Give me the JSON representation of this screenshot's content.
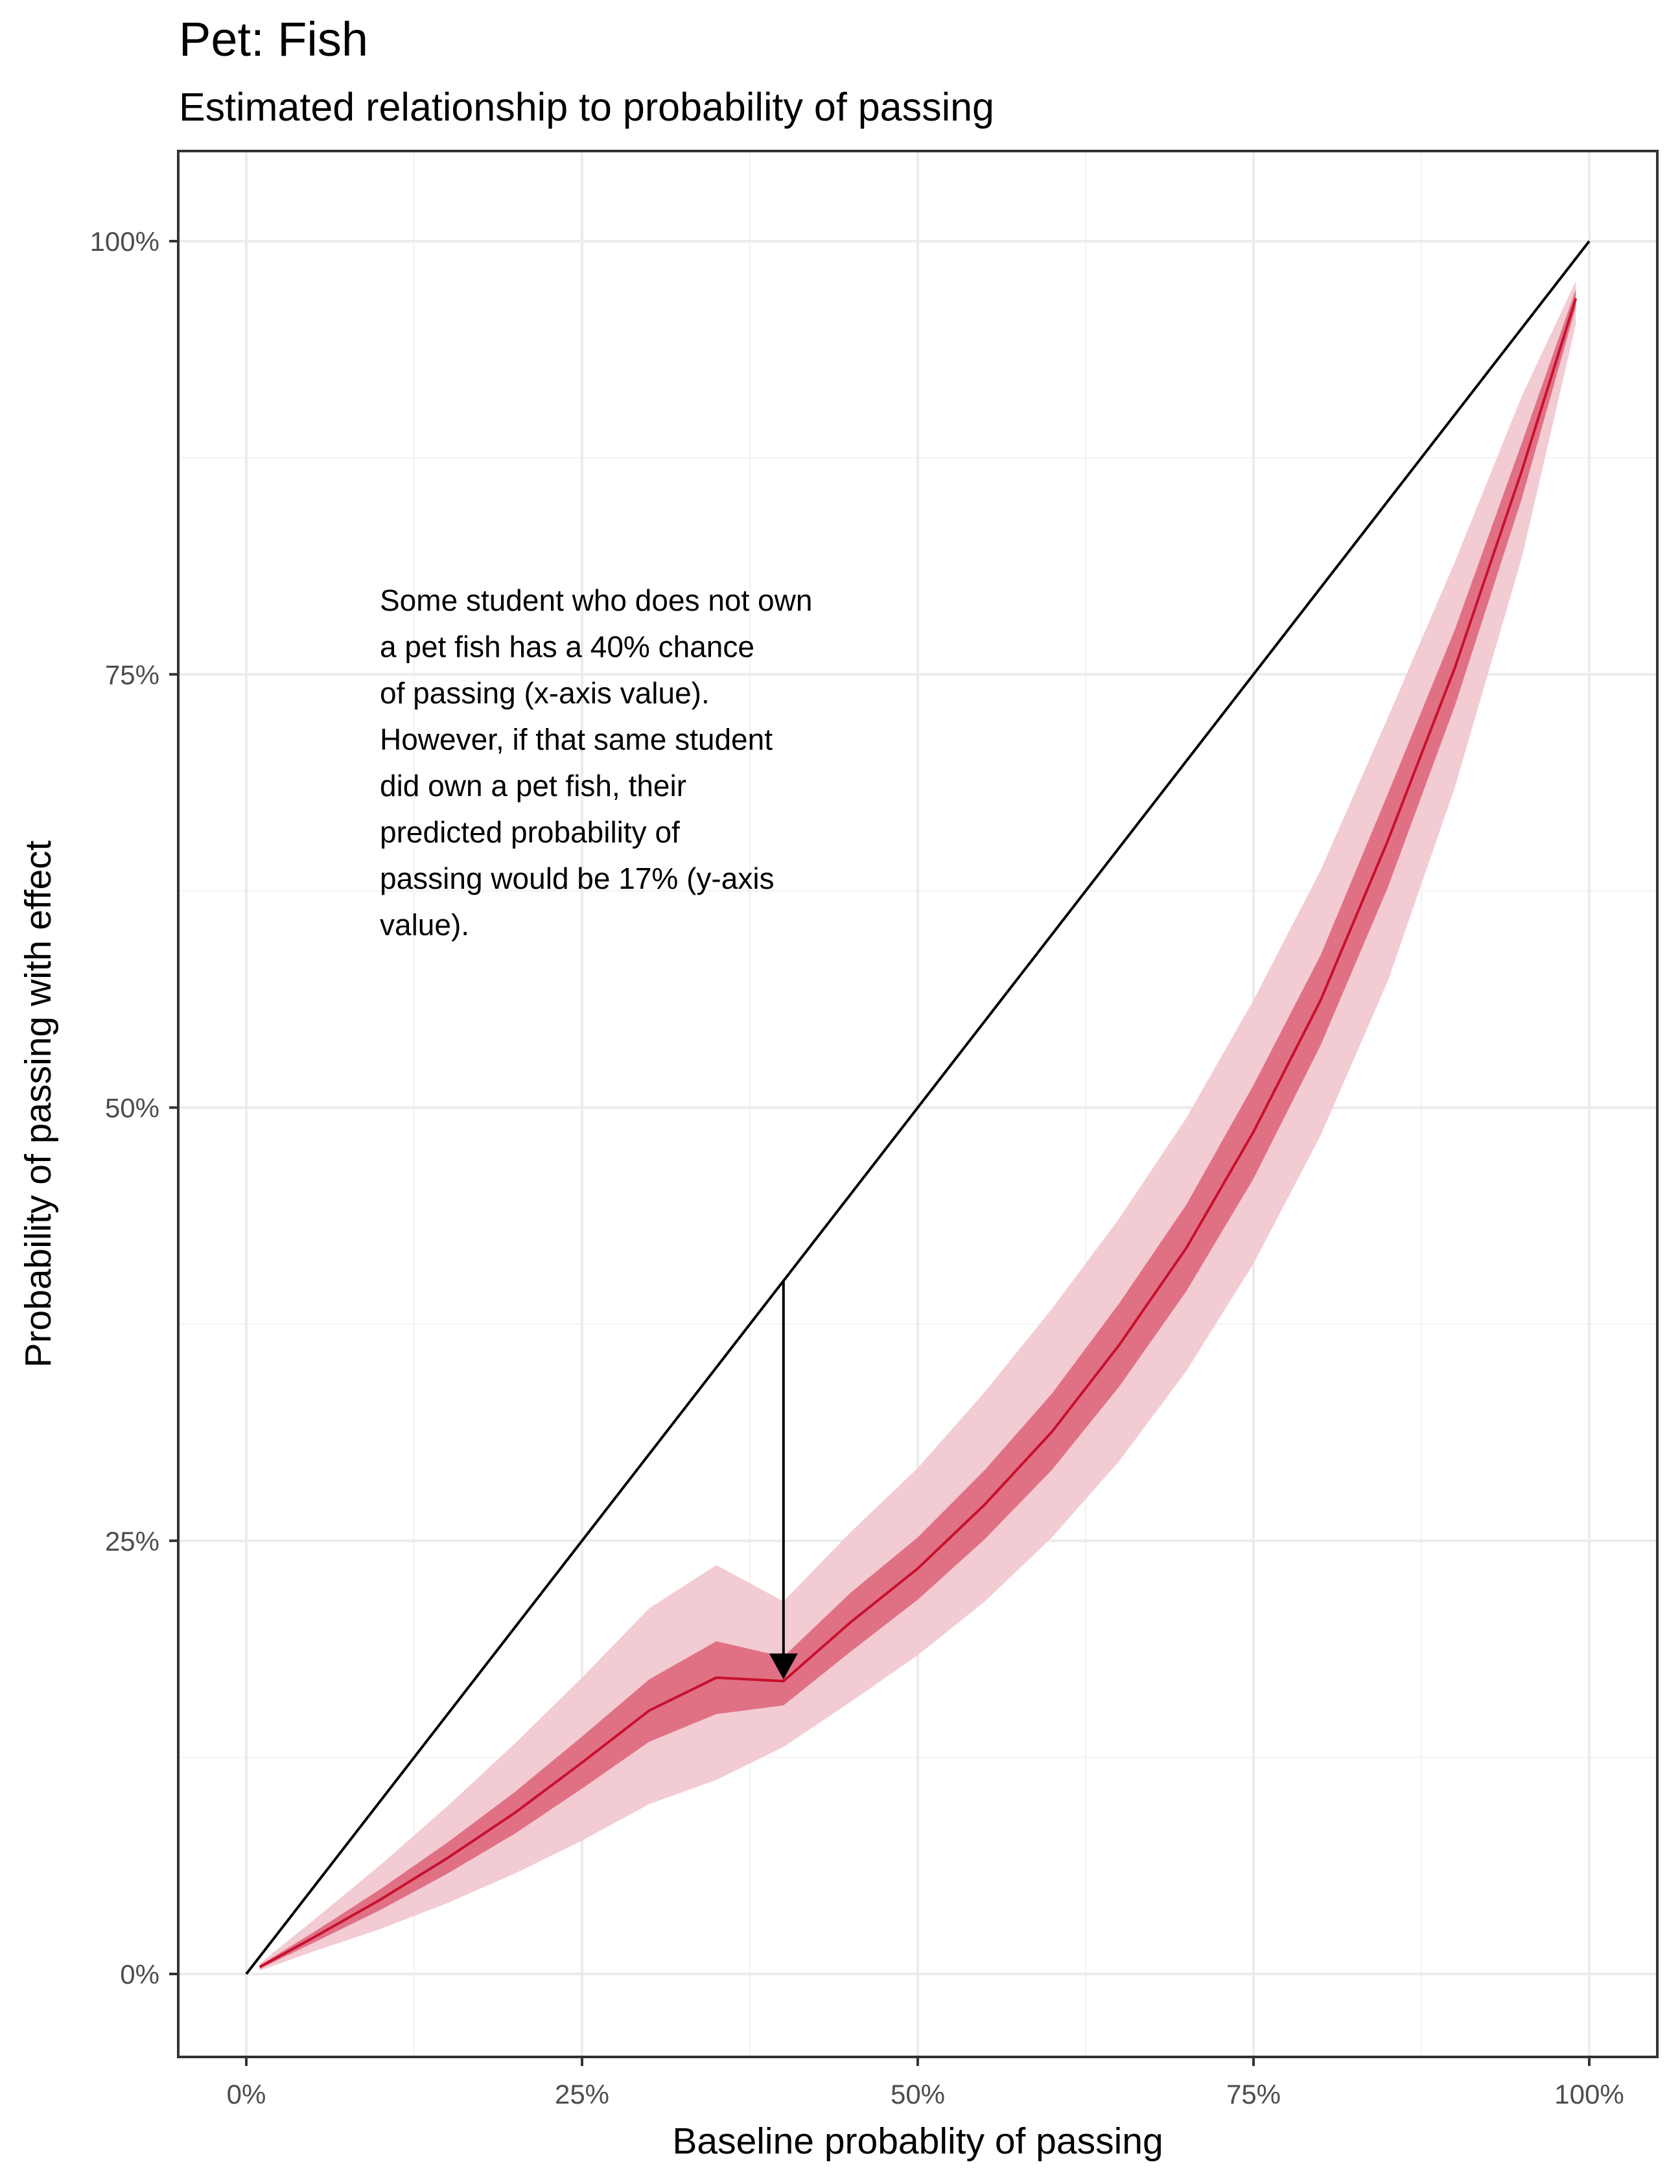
{
  "chart_data": {
    "type": "line",
    "title": "Pet: Fish",
    "subtitle": "Estimated relationship to probability of passing",
    "xlabel": "Baseline probablity of passing",
    "ylabel": "Probability of passing with effect",
    "xlim": [
      -0.05,
      1.05
    ],
    "ylim": [
      -0.05,
      1.05
    ],
    "x_ticks": [
      0,
      0.25,
      0.5,
      0.75,
      1
    ],
    "x_tick_labels": [
      "0%",
      "25%",
      "50%",
      "75%",
      "100%"
    ],
    "y_ticks": [
      0,
      0.25,
      0.5,
      0.75,
      1
    ],
    "y_tick_labels": [
      "0%",
      "25%",
      "50%",
      "75%",
      "100%"
    ],
    "grid": true,
    "series": [
      {
        "kind": "reference-line",
        "color": "#000000",
        "x": [
          0,
          1
        ],
        "y": [
          0,
          1
        ]
      },
      {
        "kind": "estimate",
        "color": "#c8102e",
        "x": [
          0.01,
          0.05,
          0.1,
          0.15,
          0.2,
          0.25,
          0.3,
          0.35,
          0.4,
          0.45,
          0.5,
          0.55,
          0.6,
          0.65,
          0.7,
          0.75,
          0.8,
          0.85,
          0.9,
          0.95,
          0.99
        ],
        "y": [
          0.004,
          0.021,
          0.043,
          0.067,
          0.093,
          0.122,
          0.152,
          0.171,
          0.169,
          0.203,
          0.234,
          0.271,
          0.313,
          0.363,
          0.419,
          0.486,
          0.562,
          0.654,
          0.754,
          0.868,
          0.967
        ],
        "inner_lower": [
          0.003,
          0.018,
          0.037,
          0.058,
          0.081,
          0.107,
          0.134,
          0.15,
          0.155,
          0.186,
          0.216,
          0.251,
          0.291,
          0.339,
          0.394,
          0.459,
          0.536,
          0.627,
          0.732,
          0.852,
          0.962
        ],
        "inner_upper": [
          0.005,
          0.024,
          0.049,
          0.076,
          0.105,
          0.137,
          0.17,
          0.192,
          0.183,
          0.22,
          0.252,
          0.291,
          0.335,
          0.387,
          0.444,
          0.513,
          0.588,
          0.681,
          0.776,
          0.884,
          0.972
        ],
        "outer_lower": [
          0.002,
          0.013,
          0.026,
          0.041,
          0.058,
          0.077,
          0.098,
          0.112,
          0.131,
          0.157,
          0.184,
          0.215,
          0.252,
          0.296,
          0.348,
          0.41,
          0.484,
          0.573,
          0.685,
          0.818,
          0.952
        ],
        "outer_upper": [
          0.006,
          0.031,
          0.063,
          0.097,
          0.133,
          0.171,
          0.211,
          0.236,
          0.215,
          0.255,
          0.292,
          0.336,
          0.384,
          0.436,
          0.494,
          0.562,
          0.637,
          0.725,
          0.815,
          0.911,
          0.977
        ]
      }
    ],
    "annotation": {
      "lines": [
        "Some student who does not own",
        "a pet fish has a 40% chance",
        "of passing (x-axis value).",
        "However, if that same student",
        "did own a pet fish, their",
        "predicted probability of",
        "passing would be 17% (y-axis",
        "value)."
      ],
      "arrow_from": [
        0.4,
        0.4
      ],
      "arrow_to": [
        0.4,
        0.17
      ]
    }
  }
}
